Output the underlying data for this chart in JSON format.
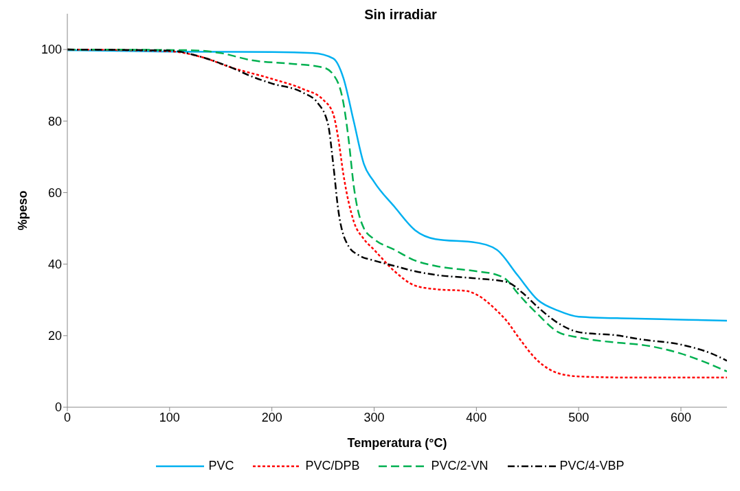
{
  "chart_data": {
    "type": "line",
    "title": "Sin irradiar",
    "xlabel": "Temperatura (°C)",
    "ylabel": "%peso",
    "xlim": [
      0,
      645
    ],
    "xticks": [
      0,
      100,
      200,
      300,
      400,
      500,
      600
    ],
    "ylim": [
      0,
      110
    ],
    "yticks": [
      0,
      20,
      40,
      60,
      80,
      100
    ],
    "legend": "bottom",
    "marker": "none",
    "series": [
      {
        "name": "PVC",
        "color": "#00b0f0",
        "line_style": "solid",
        "x": [
          0,
          100,
          200,
          240,
          260,
          270,
          280,
          290,
          300,
          320,
          340,
          360,
          400,
          420,
          440,
          460,
          480,
          500,
          550,
          600,
          645
        ],
        "values": [
          99.8,
          99.4,
          99.3,
          99,
          97.5,
          92,
          80,
          68,
          63,
          56,
          49.5,
          47,
          46,
          44,
          37,
          30,
          27,
          25.3,
          24.8,
          24.5,
          24.2
        ]
      },
      {
        "name": "PVC/DPB",
        "color": "#ff0000",
        "line_style": "dotted",
        "x": [
          0,
          100,
          130,
          160,
          200,
          230,
          250,
          260,
          265,
          270,
          280,
          290,
          300,
          320,
          340,
          360,
          390,
          400,
          420,
          430,
          440,
          460,
          480,
          500,
          550,
          645
        ],
        "values": [
          100,
          99.5,
          98,
          95,
          91.8,
          89,
          86,
          82,
          75,
          65,
          52,
          47,
          44,
          38,
          34,
          33,
          32.5,
          31.5,
          27,
          24,
          20,
          13,
          9.5,
          8.6,
          8.3,
          8.3
        ]
      },
      {
        "name": "PVC/2-VN",
        "color": "#00b050",
        "line_style": "dashed",
        "x": [
          0,
          120,
          150,
          180,
          220,
          250,
          260,
          270,
          275,
          280,
          290,
          300,
          320,
          340,
          360,
          400,
          420,
          430,
          440,
          460,
          480,
          500,
          540,
          560,
          600,
          620,
          645
        ],
        "values": [
          100,
          99.8,
          99,
          97,
          96,
          95,
          93,
          85,
          75,
          62,
          50,
          47,
          44,
          41,
          39.5,
          38,
          37,
          35.5,
          32,
          26,
          21,
          19.5,
          18,
          17.5,
          15,
          13,
          10
        ]
      },
      {
        "name": "PVC/4-VBP",
        "color": "#000000",
        "line_style": "dashdot",
        "x": [
          0,
          100,
          130,
          160,
          180,
          200,
          230,
          245,
          255,
          260,
          265,
          275,
          285,
          300,
          320,
          340,
          360,
          400,
          430,
          445,
          460,
          480,
          500,
          540,
          560,
          600,
          630,
          645
        ],
        "values": [
          100,
          99.7,
          98,
          95,
          92.5,
          90.5,
          88,
          85,
          79,
          68,
          55,
          45,
          42.5,
          41,
          39.5,
          38,
          37,
          36,
          35,
          32,
          28,
          23.5,
          21,
          20,
          19,
          17.5,
          15,
          13
        ]
      }
    ]
  }
}
